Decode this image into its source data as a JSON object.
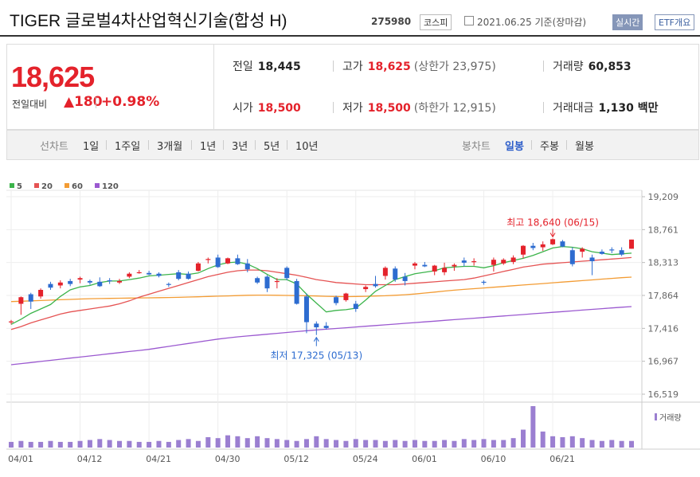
{
  "header": {
    "title": "TIGER 글로벌4차산업혁신기술(합성 H)",
    "code": "275980",
    "market": "코스피",
    "date": "2021.06.25 기준(장마감)",
    "realtime_button": "실시간",
    "etf_button": "ETF개요"
  },
  "price": {
    "current": "18,625",
    "change_label": "전일대비",
    "change_value": "180",
    "change_percent": "+0.98%",
    "up_color": "#e4222b"
  },
  "stats": {
    "prev_close_label": "전일",
    "prev_close": "18,445",
    "high_label": "고가",
    "high": "18,625",
    "upper_limit": "(상한가 23,975)",
    "volume_label": "거래량",
    "volume": "60,853",
    "open_label": "시가",
    "open": "18,500",
    "low_label": "저가",
    "low": "18,500",
    "lower_limit": "(하한가 12,915)",
    "amount_label": "거래대금",
    "amount": "1,130 백만"
  },
  "periods": {
    "line_label": "선차트",
    "line_items": [
      "1일",
      "1주일",
      "3개월",
      "1년",
      "3년",
      "5년",
      "10년"
    ],
    "candle_label": "봉차트",
    "candle_items": [
      "일봉",
      "주봉",
      "월봉"
    ],
    "candle_active": "일봉"
  },
  "chart_data": {
    "type": "candlestick",
    "y_ticks": [
      "19,209",
      "18,761",
      "18,313",
      "17,864",
      "17,416",
      "16,967",
      "16,519"
    ],
    "ylim": [
      16519,
      19209
    ],
    "x_tick_labels": [
      "04/01",
      "04/12",
      "04/21",
      "04/30",
      "05/12",
      "05/24",
      "06/01",
      "06/10",
      "06/21"
    ],
    "x_tick_index": [
      0,
      7,
      14,
      21,
      28,
      35,
      41,
      48,
      55
    ],
    "legend": [
      {
        "name": "5",
        "color": "#3cb44b"
      },
      {
        "name": "20",
        "color": "#e55353"
      },
      {
        "name": "60",
        "color": "#f39c34"
      },
      {
        "name": "120",
        "color": "#9b59d0"
      }
    ],
    "volume_legend": "거래량",
    "annotation_high": "최고 18,640 (06/15)",
    "annotation_low": "최저 17,325 (05/13)",
    "up_color": "#e4222b",
    "down_color": "#2d6cd0",
    "volume_color": "#9b7fd1",
    "candles": [
      [
        17500,
        17530,
        17470,
        17510
      ],
      [
        17750,
        17850,
        17600,
        17840
      ],
      [
        17880,
        17900,
        17680,
        17780
      ],
      [
        17850,
        17960,
        17820,
        17940
      ],
      [
        18020,
        18050,
        17940,
        17970
      ],
      [
        18000,
        18070,
        17960,
        18040
      ],
      [
        18060,
        18090,
        17990,
        18020
      ],
      [
        18080,
        18120,
        18030,
        18100
      ],
      [
        18060,
        18080,
        18010,
        18040
      ],
      [
        18050,
        18110,
        17980,
        17990
      ],
      [
        18070,
        18100,
        18020,
        18060
      ],
      [
        18040,
        18090,
        18020,
        18060
      ],
      [
        18120,
        18180,
        18100,
        18160
      ],
      [
        18180,
        18210,
        18160,
        18180
      ],
      [
        18170,
        18200,
        18140,
        18150
      ],
      [
        18160,
        18180,
        18110,
        18130
      ],
      [
        18020,
        18040,
        17980,
        18010
      ],
      [
        18180,
        18210,
        18070,
        18090
      ],
      [
        18160,
        18190,
        18080,
        18090
      ],
      [
        18200,
        18320,
        18190,
        18300
      ],
      [
        18350,
        18380,
        18300,
        18360
      ],
      [
        18380,
        18420,
        18240,
        18250
      ],
      [
        18300,
        18380,
        18290,
        18370
      ],
      [
        18370,
        18420,
        18280,
        18290
      ],
      [
        18300,
        18360,
        18180,
        18220
      ],
      [
        18100,
        18120,
        18020,
        18040
      ],
      [
        18120,
        18140,
        17910,
        17960
      ],
      [
        18060,
        18100,
        17960,
        18060
      ],
      [
        18240,
        18260,
        18070,
        18100
      ],
      [
        18060,
        18090,
        17740,
        17750
      ],
      [
        17850,
        17890,
        17350,
        17500
      ],
      [
        17480,
        17510,
        17325,
        17430
      ],
      [
        17450,
        17500,
        17400,
        17420
      ],
      [
        17840,
        17860,
        17730,
        17760
      ],
      [
        17800,
        17900,
        17780,
        17890
      ],
      [
        17750,
        17790,
        17640,
        17680
      ],
      [
        17950,
        18000,
        17910,
        17980
      ],
      [
        18020,
        18130,
        17970,
        17990
      ],
      [
        18130,
        18260,
        18080,
        18240
      ],
      [
        18230,
        18260,
        18050,
        18080
      ],
      [
        18120,
        18170,
        18000,
        18060
      ],
      [
        18270,
        18320,
        18220,
        18300
      ],
      [
        18280,
        18320,
        18250,
        18260
      ],
      [
        18190,
        18280,
        18140,
        18270
      ],
      [
        18180,
        18310,
        18140,
        18240
      ],
      [
        18260,
        18300,
        18200,
        18280
      ],
      [
        18340,
        18380,
        18260,
        18310
      ],
      [
        18330,
        18370,
        18270,
        18330
      ],
      [
        18050,
        18070,
        18010,
        18040
      ],
      [
        18280,
        18380,
        18190,
        18350
      ],
      [
        18300,
        18370,
        18280,
        18350
      ],
      [
        18320,
        18410,
        18290,
        18380
      ],
      [
        18420,
        18550,
        18370,
        18540
      ],
      [
        18540,
        18580,
        18480,
        18510
      ],
      [
        18520,
        18600,
        18470,
        18560
      ],
      [
        18560,
        18640,
        18550,
        18630
      ],
      [
        18600,
        18620,
        18520,
        18530
      ],
      [
        18480,
        18520,
        18260,
        18290
      ],
      [
        18460,
        18520,
        18380,
        18500
      ],
      [
        18380,
        18420,
        18140,
        18330
      ],
      [
        18460,
        18490,
        18420,
        18430
      ],
      [
        18490,
        18520,
        18440,
        18480
      ],
      [
        18480,
        18520,
        18400,
        18420
      ],
      [
        18500,
        18625,
        18500,
        18625
      ]
    ],
    "ma5": [
      17470,
      17540,
      17620,
      17680,
      17740,
      17850,
      17940,
      17980,
      18000,
      18040,
      18060,
      18060,
      18080,
      18100,
      18130,
      18140,
      18150,
      18160,
      18150,
      18170,
      18230,
      18280,
      18310,
      18320,
      18290,
      18230,
      18150,
      18080,
      18080,
      18020,
      17880,
      17760,
      17640,
      17660,
      17670,
      17690,
      17800,
      17920,
      18000,
      18080,
      18120,
      18160,
      18180,
      18200,
      18240,
      18250,
      18260,
      18260,
      18240,
      18270,
      18310,
      18340,
      18370,
      18410,
      18460,
      18510,
      18530,
      18520,
      18500,
      18460,
      18440,
      18420,
      18430,
      18440
    ],
    "ma20": [
      17400,
      17440,
      17490,
      17530,
      17570,
      17610,
      17640,
      17660,
      17680,
      17700,
      17720,
      17750,
      17790,
      17840,
      17880,
      17920,
      17960,
      18000,
      18040,
      18080,
      18120,
      18150,
      18180,
      18200,
      18210,
      18210,
      18200,
      18180,
      18160,
      18140,
      18110,
      18080,
      18060,
      18040,
      18030,
      18020,
      18010,
      18010,
      18010,
      18010,
      18020,
      18030,
      18040,
      18050,
      18060,
      18070,
      18080,
      18100,
      18130,
      18160,
      18190,
      18220,
      18250,
      18270,
      18290,
      18300,
      18310,
      18320,
      18330,
      18340,
      18350,
      18360,
      18370,
      18380
    ],
    "ma60": [
      17780,
      17785,
      17790,
      17795,
      17800,
      17805,
      17810,
      17815,
      17820,
      17822,
      17824,
      17826,
      17828,
      17830,
      17832,
      17834,
      17836,
      17838,
      17842,
      17846,
      17850,
      17854,
      17858,
      17862,
      17866,
      17868,
      17868,
      17866,
      17864,
      17862,
      17860,
      17856,
      17852,
      17850,
      17848,
      17850,
      17852,
      17856,
      17860,
      17866,
      17874,
      17884,
      17896,
      17910,
      17924,
      17936,
      17946,
      17956,
      17966,
      17976,
      17986,
      17996,
      18006,
      18016,
      18026,
      18036,
      18046,
      18056,
      18066,
      18076,
      18086,
      18096,
      18106,
      18114
    ],
    "ma120": [
      16920,
      16935,
      16950,
      16965,
      16980,
      16995,
      17010,
      17025,
      17040,
      17055,
      17070,
      17085,
      17100,
      17115,
      17130,
      17150,
      17170,
      17190,
      17210,
      17230,
      17250,
      17270,
      17285,
      17300,
      17312,
      17324,
      17336,
      17348,
      17360,
      17372,
      17384,
      17394,
      17404,
      17414,
      17424,
      17434,
      17444,
      17454,
      17464,
      17474,
      17484,
      17494,
      17504,
      17514,
      17524,
      17534,
      17544,
      17554,
      17564,
      17574,
      17584,
      17594,
      17604,
      17614,
      17624,
      17634,
      17644,
      17654,
      17664,
      17674,
      17684,
      17694,
      17704,
      17712
    ],
    "volume": [
      6,
      7,
      6,
      6,
      7,
      6,
      6,
      7,
      8,
      9,
      8,
      7,
      7,
      6,
      6,
      7,
      6,
      8,
      9,
      7,
      11,
      10,
      13,
      12,
      10,
      12,
      10,
      9,
      8,
      7,
      9,
      12,
      9,
      8,
      7,
      9,
      8,
      8,
      7,
      8,
      7,
      8,
      7,
      7,
      8,
      7,
      9,
      8,
      9,
      8,
      8,
      10,
      19,
      44,
      17,
      12,
      11,
      12,
      10,
      8,
      7,
      8,
      7,
      7
    ]
  }
}
